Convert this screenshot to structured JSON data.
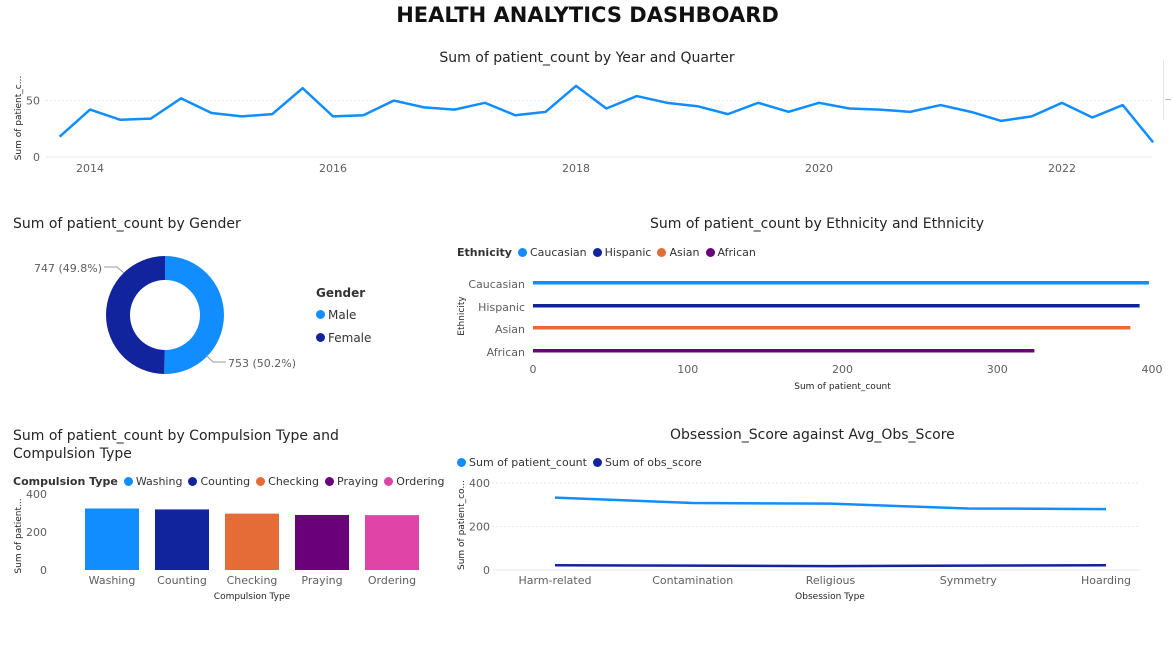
{
  "page": {
    "title": "HEALTH ANALYTICS DASHBOARD"
  },
  "colors": {
    "blue": "#118DFF",
    "navy": "#12239E",
    "orange": "#E66C37",
    "purple": "#6B007B",
    "pink": "#E044A7"
  },
  "chart_data": [
    {
      "id": "year_quarter",
      "type": "line",
      "title": "Sum of patient_count by Year and Quarter",
      "xlabel": "",
      "ylabel": "Sum of patient_c...",
      "ylim": [
        0,
        70
      ],
      "yticks": [
        0,
        50
      ],
      "xticks": [
        "2014",
        "2016",
        "2018",
        "2020",
        "2022"
      ],
      "x": [
        "2013 Q4",
        "2014 Q1",
        "2014 Q2",
        "2014 Q3",
        "2014 Q4",
        "2015 Q1",
        "2015 Q2",
        "2015 Q3",
        "2015 Q4",
        "2016 Q1",
        "2016 Q2",
        "2016 Q3",
        "2016 Q4",
        "2017 Q1",
        "2017 Q2",
        "2017 Q3",
        "2017 Q4",
        "2018 Q1",
        "2018 Q2",
        "2018 Q3",
        "2018 Q4",
        "2019 Q1",
        "2019 Q2",
        "2019 Q3",
        "2019 Q4",
        "2020 Q1",
        "2020 Q2",
        "2020 Q3",
        "2020 Q4",
        "2021 Q1",
        "2021 Q2",
        "2021 Q3",
        "2021 Q4",
        "2022 Q1",
        "2022 Q2",
        "2022 Q3",
        "2022 Q4"
      ],
      "series": [
        {
          "values": [
            18,
            42,
            33,
            34,
            52,
            39,
            36,
            38,
            61,
            36,
            37,
            50,
            44,
            42,
            48,
            37,
            40,
            63,
            43,
            54,
            48,
            45,
            38,
            48,
            40,
            48,
            43,
            42,
            40,
            46,
            40,
            32,
            36,
            48,
            35,
            46,
            13
          ]
        }
      ],
      "grid": true
    },
    {
      "id": "gender",
      "type": "pie",
      "donut": true,
      "title": "Sum of patient_count by Gender",
      "legend_title": "Gender",
      "categories": [
        "Male",
        "Female"
      ],
      "values": [
        753,
        747
      ],
      "labels": [
        "753 (50.2%)",
        "747 (49.8%)"
      ]
    },
    {
      "id": "ethnicity",
      "type": "bar",
      "orientation": "horizontal",
      "title": "Sum of patient_count by Ethnicity and Ethnicity",
      "legend_title": "Ethnicity",
      "categories": [
        "Caucasian",
        "Hispanic",
        "Asian",
        "African"
      ],
      "values": [
        398,
        392,
        386,
        324
      ],
      "xlabel": "Sum of patient_count",
      "ylabel": "Ethnicity",
      "xlim": [
        0,
        400
      ],
      "xticks": [
        0,
        100,
        200,
        300,
        400
      ]
    },
    {
      "id": "compulsion",
      "type": "bar",
      "title_line1": "Sum of patient_count by Compulsion Type and",
      "title_line2": "Compulsion Type",
      "legend_title": "Compulsion Type",
      "categories": [
        "Washing",
        "Counting",
        "Checking",
        "Praying",
        "Ordering"
      ],
      "values": [
        323,
        318,
        296,
        289,
        288
      ],
      "xlabel": "Compulsion Type",
      "ylabel": "Sum of patient...",
      "ylim": [
        0,
        420
      ],
      "yticks": [
        0,
        200,
        400
      ]
    },
    {
      "id": "obsession",
      "type": "line",
      "title": "Obsession_Score against Avg_Obs_Score",
      "categories": [
        "Harm-related",
        "Contamination",
        "Religious",
        "Symmetry",
        "Hoarding"
      ],
      "series": [
        {
          "name": "Sum of patient_count",
          "values": [
            333,
            308,
            305,
            283,
            280
          ]
        },
        {
          "name": "Sum of obs_score",
          "values": [
            22,
            20,
            18,
            20,
            22
          ]
        }
      ],
      "xlabel": "Obsession Type",
      "ylabel": "Sum of patient_co...",
      "ylim": [
        0,
        400
      ],
      "yticks": [
        0,
        200,
        400
      ],
      "grid": true
    }
  ]
}
